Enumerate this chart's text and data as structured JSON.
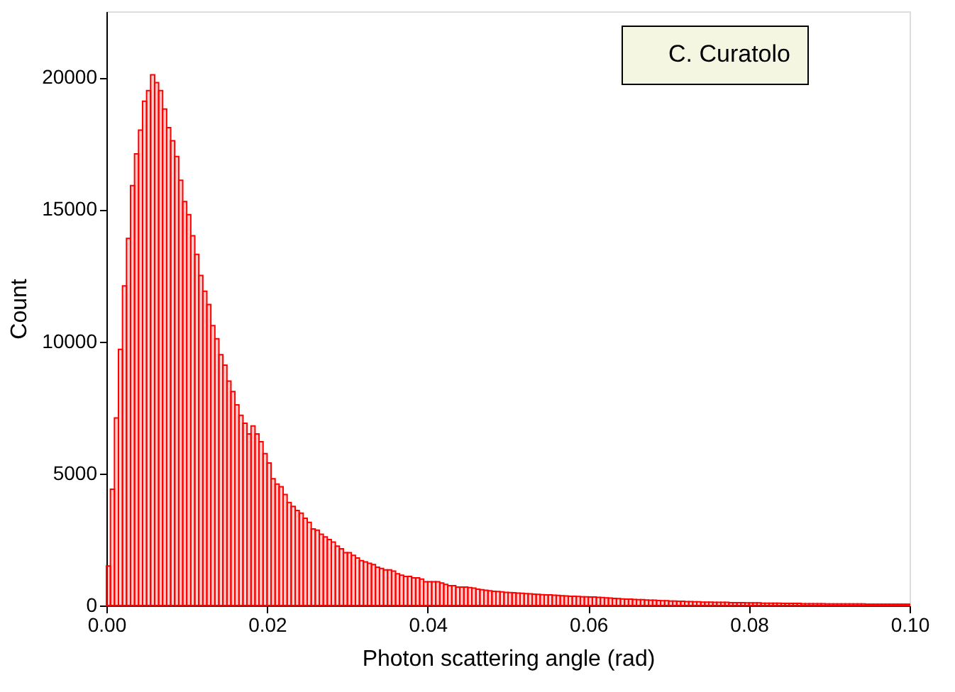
{
  "chart_data": {
    "type": "histogram",
    "xlabel": "Photon scattering angle (rad)",
    "ylabel": "Count",
    "annotations": [
      "C. Curatolo"
    ],
    "color": "#ff0000",
    "bins": [
      0,
      0.0005,
      0.001,
      0.0015,
      0.002,
      0.0025,
      0.003,
      0.0035,
      0.004,
      0.0045,
      0.005,
      0.0055,
      0.006,
      0.0065,
      0.007,
      0.0075,
      0.008,
      0.0085,
      0.009,
      0.0095,
      0.01,
      0.0105,
      0.011,
      0.0115,
      0.012,
      0.0125,
      0.013,
      0.0135,
      0.014,
      0.0145,
      0.015,
      0.0155,
      0.016,
      0.0165,
      0.017,
      0.0175,
      0.018,
      0.0185,
      0.019,
      0.0195,
      0.02,
      0.0205,
      0.021,
      0.0215,
      0.022,
      0.0225,
      0.023,
      0.0235,
      0.024,
      0.0245,
      0.025,
      0.0255,
      0.026,
      0.0265,
      0.027,
      0.0275,
      0.028,
      0.0285,
      0.029,
      0.0295,
      0.03,
      0.0305,
      0.031,
      0.0315,
      0.032,
      0.0325,
      0.033,
      0.0335,
      0.034,
      0.0345,
      0.035,
      0.0355,
      0.036,
      0.0365,
      0.037,
      0.0375,
      0.038,
      0.0385,
      0.039,
      0.0395,
      0.04,
      0.0405,
      0.041,
      0.0415,
      0.042,
      0.0425,
      0.043,
      0.0435,
      0.044,
      0.0445,
      0.045,
      0.0455,
      0.046,
      0.0465,
      0.047,
      0.0475,
      0.048,
      0.0485,
      0.049,
      0.0495,
      0.05,
      0.0505,
      0.051,
      0.0515,
      0.052,
      0.0525,
      0.053,
      0.0535,
      0.054,
      0.0545,
      0.055,
      0.0555,
      0.056,
      0.0565,
      0.057,
      0.0575,
      0.058,
      0.0585,
      0.059,
      0.0595,
      0.06,
      0.0605,
      0.061,
      0.0615,
      0.062,
      0.0625,
      0.063,
      0.0635,
      0.064,
      0.0645,
      0.065,
      0.0655,
      0.066,
      0.0665,
      0.067,
      0.0675,
      0.068,
      0.0685,
      0.069,
      0.0695,
      0.07,
      0.0705,
      0.071,
      0.0715,
      0.072,
      0.0725,
      0.073,
      0.0735,
      0.074,
      0.0745,
      0.075,
      0.0755,
      0.076,
      0.0765,
      0.077,
      0.0775,
      0.078,
      0.0785,
      0.079,
      0.0795,
      0.08,
      0.0805,
      0.081,
      0.0815,
      0.082,
      0.0825,
      0.083,
      0.0835,
      0.084,
      0.0845,
      0.085,
      0.0855,
      0.086,
      0.0865,
      0.087,
      0.0875,
      0.088,
      0.0885,
      0.089,
      0.0895,
      0.09,
      0.0905,
      0.091,
      0.0915,
      0.092,
      0.0925,
      0.093,
      0.0935,
      0.094,
      0.0945,
      0.095,
      0.0955,
      0.096,
      0.0965,
      0.097,
      0.0975,
      0.098,
      0.0985,
      0.099,
      0.0995,
      0.1
    ],
    "values": [
      1500,
      4400,
      7100,
      9700,
      12100,
      13900,
      15900,
      17100,
      18000,
      19100,
      19500,
      20100,
      19800,
      19500,
      18800,
      18100,
      17600,
      17000,
      16100,
      15300,
      14800,
      14000,
      13300,
      12500,
      11900,
      11400,
      10600,
      10100,
      9500,
      9100,
      8500,
      8100,
      7600,
      7200,
      6900,
      6500,
      6800,
      6500,
      6200,
      5750,
      5400,
      4800,
      4600,
      4500,
      4200,
      3900,
      3750,
      3600,
      3500,
      3300,
      3150,
      2900,
      2850,
      2700,
      2600,
      2500,
      2400,
      2250,
      2150,
      2000,
      2000,
      1900,
      1800,
      1700,
      1650,
      1600,
      1550,
      1450,
      1400,
      1350,
      1350,
      1300,
      1200,
      1150,
      1100,
      1100,
      1050,
      1050,
      1000,
      900,
      900,
      900,
      900,
      850,
      800,
      750,
      750,
      700,
      700,
      700,
      680,
      660,
      620,
      600,
      580,
      560,
      540,
      530,
      520,
      500,
      490,
      480,
      470,
      460,
      450,
      440,
      430,
      420,
      410,
      400,
      400,
      390,
      380,
      370,
      360,
      350,
      350,
      340,
      330,
      330,
      320,
      320,
      310,
      300,
      290,
      280,
      270,
      260,
      250,
      240,
      240,
      230,
      220,
      220,
      210,
      200,
      200,
      190,
      180,
      180,
      170,
      170,
      160,
      160,
      150,
      150,
      140,
      140,
      130,
      130,
      130,
      120,
      120,
      120,
      120,
      110,
      110,
      110,
      110,
      100,
      100,
      100,
      100,
      90,
      90,
      90,
      90,
      90,
      80,
      80,
      80,
      80,
      80,
      70,
      70,
      70,
      70,
      70,
      70,
      60,
      60,
      60,
      60,
      60,
      60,
      60,
      60,
      60,
      60,
      50,
      50,
      50,
      50,
      50,
      50,
      50,
      50,
      50,
      50,
      50
    ],
    "xlim": [
      0,
      0.1
    ],
    "xticks": [
      {
        "value": 0,
        "label": "0.00"
      },
      0.02,
      0.04,
      0.06,
      0.08,
      {
        "value": 0.1,
        "label": "0.10"
      }
    ],
    "ylim": [
      0,
      22500
    ],
    "yticks": [
      0,
      5000,
      10000,
      15000,
      20000
    ],
    "grid": false
  }
}
